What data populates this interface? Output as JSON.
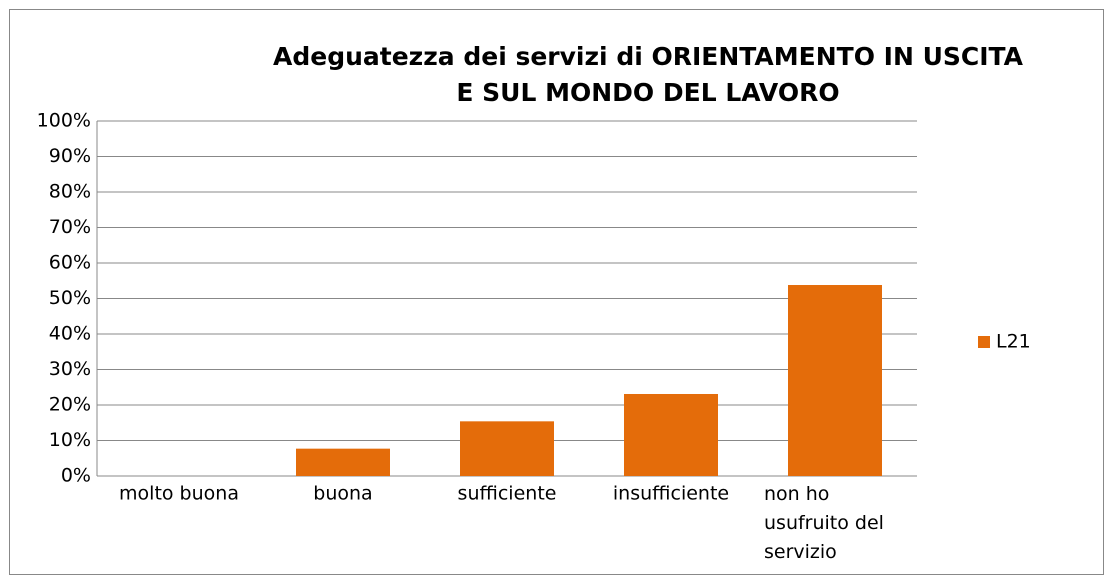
{
  "chart_data": {
    "type": "bar",
    "title": [
      "Adeguatezza dei servizi di ORIENTAMENTO IN USCITA",
      "E SUL MONDO DEL LAVORO"
    ],
    "categories": [
      "molto buona",
      "buona",
      "sufficiente",
      "insufficiente",
      "non ho usufruito del servizio"
    ],
    "series": [
      {
        "name": "L21",
        "color": "#e46c0a",
        "values": [
          0,
          7.7,
          15.4,
          23.1,
          53.8
        ]
      }
    ],
    "ylim": [
      0,
      100
    ],
    "yticks": [
      {
        "value": 0,
        "label": "0%"
      },
      {
        "value": 10,
        "label": "10%"
      },
      {
        "value": 20,
        "label": "20%"
      },
      {
        "value": 30,
        "label": "30%"
      },
      {
        "value": 40,
        "label": "40%"
      },
      {
        "value": 50,
        "label": "50%"
      },
      {
        "value": 60,
        "label": "60%"
      },
      {
        "value": 70,
        "label": "70%"
      },
      {
        "value": 80,
        "label": "80%"
      },
      {
        "value": 90,
        "label": "90%"
      },
      {
        "value": 100,
        "label": "100%"
      }
    ],
    "grid": true,
    "legend": "right"
  }
}
